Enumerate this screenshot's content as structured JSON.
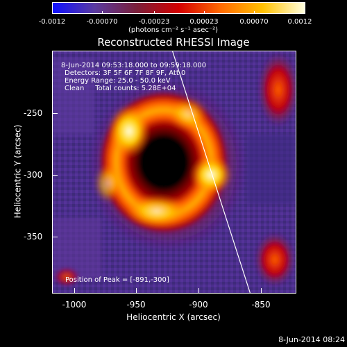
{
  "colorbar": {
    "ticks": [
      "-0.0012",
      "-0.00070",
      "-0.00023",
      "0.00023",
      "0.00070",
      "0.0012"
    ],
    "units_label": "(photons cm⁻² s⁻¹ asec⁻²)"
  },
  "image": {
    "title": "Reconstructed RHESSI Image",
    "info": {
      "time_range": "8-Jun-2014 09:53:18.000 to 09:59:18.000",
      "detectors": "Detectors: 3F 5F 6F 7F 8F 9F, Att 0",
      "energy": "Energy Range: 25.0 - 50.0 keV",
      "clean": "Clean     Total counts: 5.28E+04",
      "peak": "Position of Peak = [-891,-300]"
    },
    "xlabel": "Heliocentric X (arcsec)",
    "ylabel": "Heliocentric Y (arcsec)",
    "xticks": [
      "-1000",
      "-950",
      "-900",
      "-850"
    ],
    "yticks": [
      "-250",
      "-300",
      "-350"
    ],
    "footer_date": "8-Jun-2014 08:24"
  },
  "colors": {
    "background": "#000000",
    "colormap": [
      "#1010ff",
      "#5a3aa0",
      "#7a1f3a",
      "#d40000",
      "#ff6a00",
      "#ffc000",
      "#ffffe0"
    ]
  }
}
